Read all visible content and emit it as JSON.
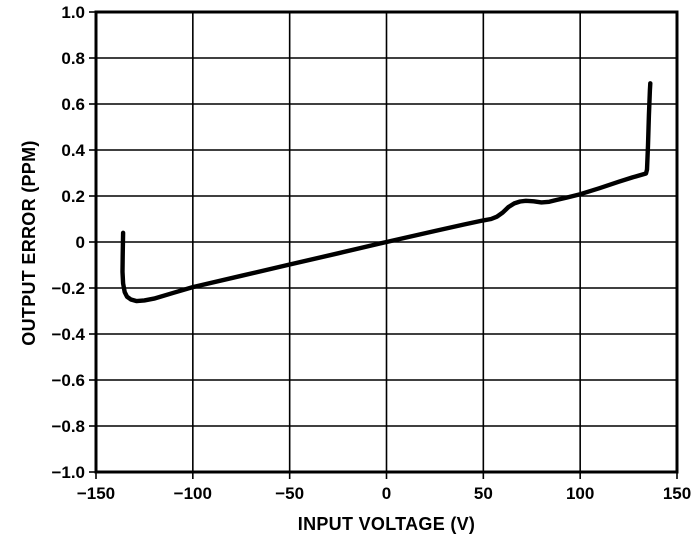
{
  "figure": {
    "background": "#ffffff",
    "foreground": "#000000"
  },
  "chart_data": {
    "type": "line",
    "title": "",
    "xlabel": "INPUT VOLTAGE (V)",
    "ylabel": "OUTPUT ERROR (PPM)",
    "xlim": [
      -150,
      150
    ],
    "ylim": [
      -1.0,
      1.0
    ],
    "x_ticks": [
      -150,
      -100,
      -50,
      0,
      50,
      100,
      150
    ],
    "x_tick_labels": [
      "−150",
      "−100",
      "−50",
      "0",
      "50",
      "100",
      "150"
    ],
    "y_ticks": [
      1.0,
      0.8,
      0.6,
      0.4,
      0.2,
      0,
      -0.2,
      -0.4,
      -0.6,
      -0.8,
      -1.0
    ],
    "y_tick_labels": [
      "1.0",
      "0.8",
      "0.6",
      "0.4",
      "0.2",
      "0",
      "−0.2",
      "−0.4",
      "−0.6",
      "−0.8",
      "−1.0"
    ],
    "grid": true,
    "legend": "none",
    "line_color": "#000000",
    "series": [
      {
        "name": "output error vs input voltage",
        "color": "#000000",
        "points": [
          [
            -136.0,
            0.04
          ],
          [
            -136.2,
            -0.06
          ],
          [
            -136.3,
            -0.13
          ],
          [
            -136.0,
            -0.18
          ],
          [
            -135.2,
            -0.218
          ],
          [
            -134.0,
            -0.238
          ],
          [
            -132.0,
            -0.25
          ],
          [
            -129.0,
            -0.257
          ],
          [
            -125.0,
            -0.254
          ],
          [
            -120.0,
            -0.246
          ],
          [
            -110.0,
            -0.221
          ],
          [
            -100.0,
            -0.196
          ],
          [
            -75.0,
            -0.147
          ],
          [
            -50.0,
            -0.098
          ],
          [
            -25.0,
            -0.049
          ],
          [
            0.0,
            0.0
          ],
          [
            25.0,
            0.048
          ],
          [
            40.0,
            0.076
          ],
          [
            50.0,
            0.094
          ],
          [
            54.0,
            0.1
          ],
          [
            57.0,
            0.11
          ],
          [
            60.0,
            0.128
          ],
          [
            63.0,
            0.152
          ],
          [
            66.0,
            0.168
          ],
          [
            69.0,
            0.176
          ],
          [
            72.0,
            0.179
          ],
          [
            76.0,
            0.177
          ],
          [
            80.0,
            0.172
          ],
          [
            84.0,
            0.175
          ],
          [
            88.0,
            0.183
          ],
          [
            93.0,
            0.193
          ],
          [
            100.0,
            0.208
          ],
          [
            110.0,
            0.234
          ],
          [
            120.0,
            0.262
          ],
          [
            127.0,
            0.281
          ],
          [
            134.0,
            0.298
          ],
          [
            134.5,
            0.315
          ],
          [
            135.0,
            0.42
          ],
          [
            135.5,
            0.55
          ],
          [
            136.0,
            0.66
          ],
          [
            136.2,
            0.69
          ]
        ]
      }
    ]
  }
}
